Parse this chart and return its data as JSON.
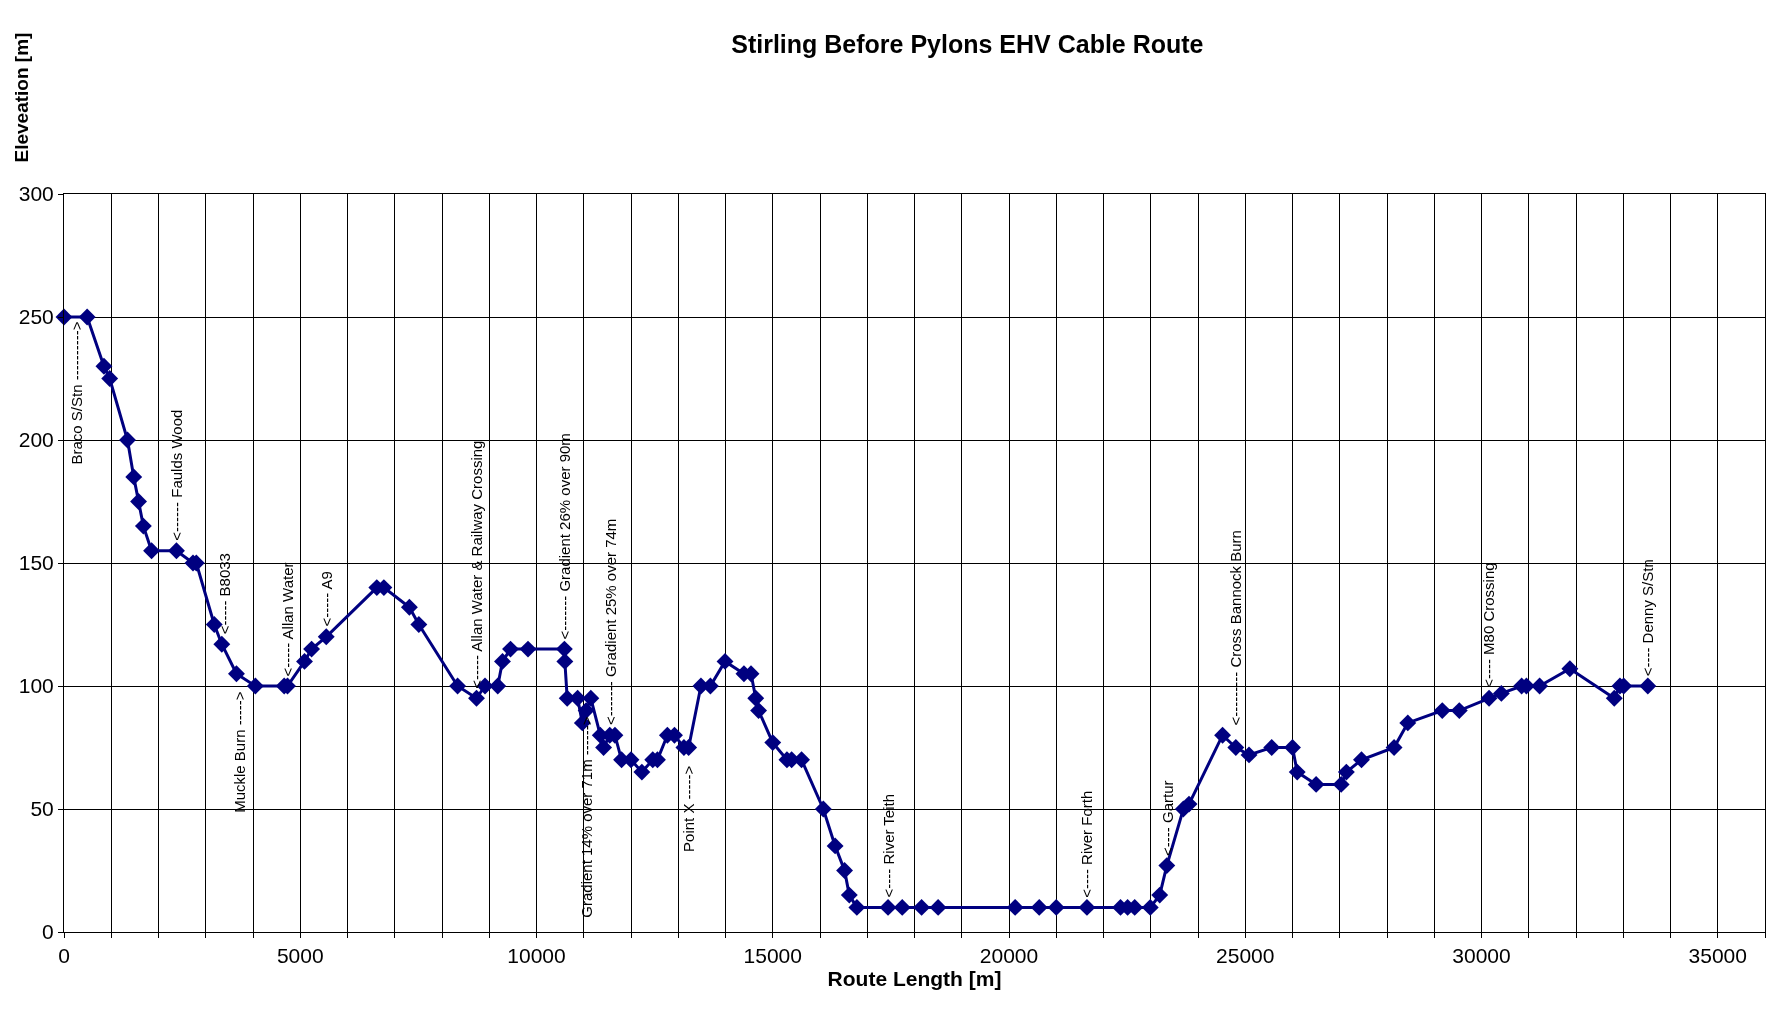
{
  "chart_data": {
    "type": "line",
    "title": "Stirling Before Pylons EHV Cable Route",
    "xlabel": "Route Length [m]",
    "ylabel": "Eleveation [m]",
    "x": [
      0,
      490,
      845,
      967,
      1344,
      1476,
      1578,
      1680,
      1853,
      2380,
      2730,
      2800,
      3180,
      3340,
      3650,
      4050,
      4660,
      4730,
      5090,
      5240,
      5550,
      6620,
      6770,
      7310,
      7510,
      8330,
      8730,
      8910,
      9180,
      9280,
      9450,
      9820,
      10590,
      10600,
      10650,
      10870,
      10970,
      11050,
      11150,
      11350,
      11420,
      11550,
      11660,
      11800,
      12000,
      12230,
      12460,
      12560,
      12770,
      12920,
      13120,
      13220,
      13480,
      13680,
      13990,
      14390,
      14540,
      14640,
      14700,
      15000,
      15300,
      15400,
      15610,
      16070,
      16320,
      16520,
      16620,
      16780,
      17440,
      17740,
      18150,
      18500,
      20130,
      20640,
      21000,
      21650,
      22360,
      22510,
      22660,
      22990,
      23190,
      23340,
      23690,
      23810,
      24520,
      24800,
      25080,
      25560,
      26000,
      26100,
      26500,
      27030,
      27140,
      27460,
      28150,
      28440,
      29170,
      29530,
      30160,
      30420,
      30850,
      30950,
      31230,
      31870,
      32810,
      32930,
      33010,
      33520
    ],
    "series": [
      {
        "color": "#000080",
        "values": [
          250,
          250,
          230,
          225,
          200,
          185,
          175,
          165,
          155,
          155,
          150,
          150,
          125,
          117,
          105,
          100,
          100,
          100,
          110,
          115,
          120,
          140,
          140,
          132,
          125,
          100,
          95,
          100,
          100,
          110,
          115,
          115,
          115,
          110,
          95,
          95,
          85,
          90,
          95,
          80,
          75,
          80,
          80,
          70,
          70,
          65,
          70,
          70,
          80,
          80,
          75,
          75,
          100,
          100,
          110,
          105,
          105,
          95,
          90,
          77,
          70,
          70,
          70,
          50,
          35,
          25,
          15,
          10,
          10,
          10,
          10,
          10,
          10,
          10,
          10,
          10,
          10,
          10,
          10,
          10,
          15,
          27,
          50,
          52,
          80,
          75,
          72,
          75,
          75,
          65,
          60,
          60,
          65,
          70,
          75,
          85,
          90,
          90,
          95,
          97,
          100,
          100,
          100,
          107,
          95,
          100,
          100,
          100
        ]
      }
    ],
    "xlim": [
      0,
      36000
    ],
    "xticks": [
      0,
      {
        "value": 1000,
        "label": null
      },
      {
        "value": 2000,
        "label": null
      },
      {
        "value": 3000,
        "label": null
      },
      {
        "value": 4000,
        "label": null
      },
      5000,
      {
        "value": 6000,
        "label": null
      },
      {
        "value": 7000,
        "label": null
      },
      {
        "value": 8000,
        "label": null
      },
      {
        "value": 9000,
        "label": null
      },
      10000,
      {
        "value": 11000,
        "label": null
      },
      {
        "value": 12000,
        "label": null
      },
      {
        "value": 13000,
        "label": null
      },
      {
        "value": 14000,
        "label": null
      },
      15000,
      {
        "value": 16000,
        "label": null
      },
      {
        "value": 17000,
        "label": null
      },
      {
        "value": 18000,
        "label": null
      },
      {
        "value": 19000,
        "label": null
      },
      20000,
      {
        "value": 21000,
        "label": null
      },
      {
        "value": 22000,
        "label": null
      },
      {
        "value": 23000,
        "label": null
      },
      {
        "value": 24000,
        "label": null
      },
      25000,
      {
        "value": 26000,
        "label": null
      },
      {
        "value": 27000,
        "label": null
      },
      {
        "value": 28000,
        "label": null
      },
      {
        "value": 29000,
        "label": null
      },
      30000,
      {
        "value": 31000,
        "label": null
      },
      {
        "value": 32000,
        "label": null
      },
      {
        "value": 33000,
        "label": null
      },
      {
        "value": 34000,
        "label": null
      },
      35000,
      {
        "value": 36000,
        "label": null
      }
    ],
    "ylim": [
      0,
      300
    ],
    "yticks": [
      0,
      50,
      100,
      150,
      200,
      250,
      300
    ],
    "grid": true,
    "marker": "diamond",
    "line_style": "solid",
    "annotations": [
      {
        "text": "Braco S/Stn ---------->",
        "x": 0,
        "y": 250
      },
      {
        "text": "<------ Faulds Wood",
        "x": 2380,
        "y": 155
      },
      {
        "text": "<----- B8033",
        "x": 3400,
        "y": 117
      },
      {
        "text": "Muckle Burn ----->",
        "x": 3700,
        "y": 100
      },
      {
        "text": "<----- Allan Water",
        "x": 4730,
        "y": 100
      },
      {
        "text": "<----- A9",
        "x": 5550,
        "y": 120
      },
      {
        "text": "<----- Allan Water & Railway Crossing",
        "x": 8730,
        "y": 95
      },
      {
        "text": "<------- Gradient 26% over 90m",
        "x": 10590,
        "y": 115
      },
      {
        "text": "Gradient 14% over 71m ------>",
        "x": 11050,
        "y": 90
      },
      {
        "text": "<------- Gradient 25% over 74m",
        "x": 11550,
        "y": 80
      },
      {
        "text": "Point X ----->",
        "x": 13220,
        "y": 70
      },
      {
        "text": "<---- River Teith",
        "x": 17440,
        "y": 10
      },
      {
        "text": "<---- River Forth",
        "x": 21650,
        "y": 10
      },
      {
        "text": "<---- Gartur",
        "x": 23340,
        "y": 27
      },
      {
        "text": "<--------- Cross Bannock Burn",
        "x": 24800,
        "y": 80
      },
      {
        "text": "<---- M80 Crossing",
        "x": 30160,
        "y": 95
      },
      {
        "text": "<---- Denny S/Stn",
        "x": 33520,
        "y": 100
      }
    ]
  }
}
